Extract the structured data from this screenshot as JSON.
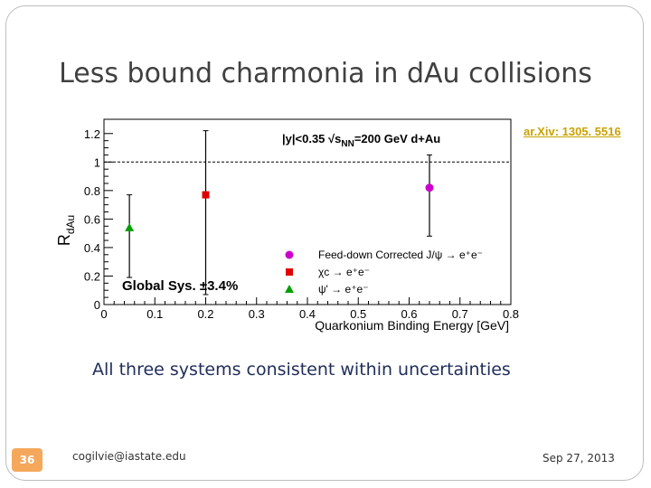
{
  "slide": {
    "title": "Less bound charmonia in dAu collisions",
    "reference": "ar.Xiv: 1305. 5516",
    "caption": "All three systems consistent within uncertainties",
    "number": "36",
    "author_email": "cogilvie@iastate.edu",
    "date": "Sep 27, 2013",
    "accent_color": "#f5a85c"
  },
  "chart_data": {
    "type": "scatter",
    "xlabel": "Quarkonium Binding Energy [GeV]",
    "ylabel": "R",
    "ylabel_sub": "dAu",
    "xlim": [
      0,
      0.8
    ],
    "ylim": [
      0,
      1.3
    ],
    "x_ticks": [
      "0",
      "0.1",
      "0.2",
      "0.3",
      "0.4",
      "0.5",
      "0.6",
      "0.7",
      "0.8"
    ],
    "y_ticks": [
      "0",
      "0.2",
      "0.4",
      "0.6",
      "0.8",
      "1",
      "1.2"
    ],
    "reference_line": 1,
    "annotation": {
      "y_part": "|y|<0.35",
      "sqrt": "√s",
      "sub": "NN",
      "energy": "=200 GeV d+Au"
    },
    "global_sys": "Global Sys.  ±3.4%",
    "legend_position": "bottom-right",
    "series": [
      {
        "name": "Feed-down Corrected J/ψ → e⁺e⁻",
        "marker": "circle",
        "color": "#cc00cc",
        "x": [
          0.64
        ],
        "y": [
          0.82
        ],
        "err_low": [
          0.48
        ],
        "err_high": [
          1.05
        ]
      },
      {
        "name": "χc → e⁺e⁻",
        "marker": "square",
        "color": "#e00000",
        "x": [
          0.2
        ],
        "y": [
          0.77
        ],
        "err_low": [
          0.07
        ],
        "err_high": [
          1.22
        ]
      },
      {
        "name": "ψ' → e⁺e⁻",
        "marker": "triangle",
        "color": "#00a000",
        "x": [
          0.05
        ],
        "y": [
          0.54
        ],
        "err_low": [
          0.19
        ],
        "err_high": [
          0.77
        ]
      }
    ]
  }
}
